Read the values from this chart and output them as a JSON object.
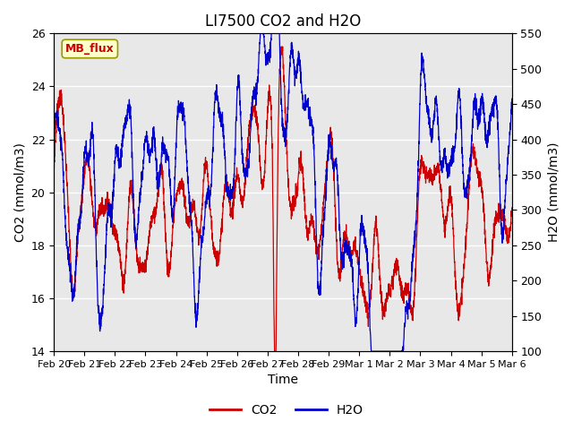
{
  "title": "LI7500 CO2 and H2O",
  "xlabel": "Time",
  "ylabel_left": "CO2 (mmol/m3)",
  "ylabel_right": "H2O (mmol/m3)",
  "ylim_left": [
    14,
    26
  ],
  "ylim_right": [
    100,
    550
  ],
  "yticks_left": [
    14,
    16,
    18,
    20,
    22,
    24,
    26
  ],
  "yticks_right": [
    100,
    150,
    200,
    250,
    300,
    350,
    400,
    450,
    500,
    550
  ],
  "co2_color": "#cc0000",
  "h2o_color": "#0000cc",
  "bg_color": "#e8e8e8",
  "legend_label_co2": "CO2",
  "legend_label_h2o": "H2O",
  "annotation_text": "MB_flux",
  "annotation_bg": "#ffffcc",
  "annotation_border": "#999900",
  "xtick_labels": [
    "Feb 20",
    "Feb 21",
    "Feb 22",
    "Feb 23",
    "Feb 24",
    "Feb 25",
    "Feb 26",
    "Feb 27",
    "Feb 28",
    "Feb 29",
    "Mar 1",
    "Mar 2",
    "Mar 3",
    "Mar 4",
    "Mar 5",
    "Mar 6"
  ],
  "title_fontsize": 12,
  "label_fontsize": 10,
  "tick_fontsize": 9
}
